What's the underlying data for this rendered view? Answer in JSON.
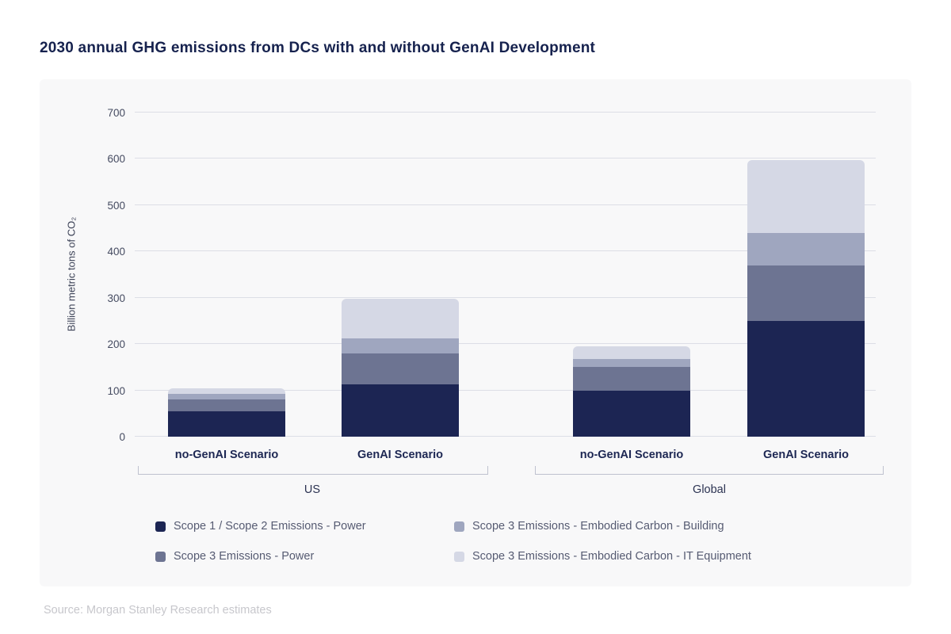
{
  "title": "2030 annual GHG emissions from DCs with and without GenAI Development",
  "source": "Source: Morgan Stanley Research estimates",
  "chart_data": {
    "type": "bar",
    "stacked": true,
    "title": "2030 annual GHG emissions from DCs with and without GenAI Development",
    "xlabel": "",
    "ylabel": "Billion metric tons of CO₂",
    "ylim": [
      0,
      700
    ],
    "yticks": [
      0,
      100,
      200,
      300,
      400,
      500,
      600,
      700
    ],
    "grid": true,
    "legend_position": "bottom",
    "groups": [
      {
        "label": "US",
        "categories": [
          "no-GenAI Scenario",
          "GenAI Scenario"
        ]
      },
      {
        "label": "Global",
        "categories": [
          "no-GenAI Scenario",
          "GenAI Scenario"
        ]
      }
    ],
    "categories": [
      "no-GenAI Scenario",
      "GenAI Scenario",
      "no-GenAI Scenario",
      "GenAI Scenario"
    ],
    "series": [
      {
        "name": "Scope 1 / Scope 2 Emissions - Power",
        "color": "#1c2553",
        "values": [
          55,
          113,
          100,
          250
        ]
      },
      {
        "name": "Scope 3 Emissions - Power",
        "color": "#6d7492",
        "values": [
          25,
          67,
          50,
          120
        ]
      },
      {
        "name": "Scope 3 Emissions - Embodied Carbon - Building",
        "color": "#9fa6bf",
        "values": [
          12,
          33,
          18,
          70
        ]
      },
      {
        "name": "Scope 3 Emissions - Embodied Carbon - IT Equipment",
        "color": "#d5d8e5",
        "values": [
          13,
          84,
          27,
          158
        ]
      }
    ],
    "totals": [
      105,
      297,
      195,
      598
    ]
  },
  "legend_display_order": [
    0,
    2,
    1,
    3
  ],
  "colors": {
    "panel_background": "#f8f8f9",
    "gridline": "#dcdee6",
    "title_text": "#16224e",
    "axis_text": "#454b61",
    "legend_text": "#565b72",
    "source_text": "#c7c7cc"
  }
}
